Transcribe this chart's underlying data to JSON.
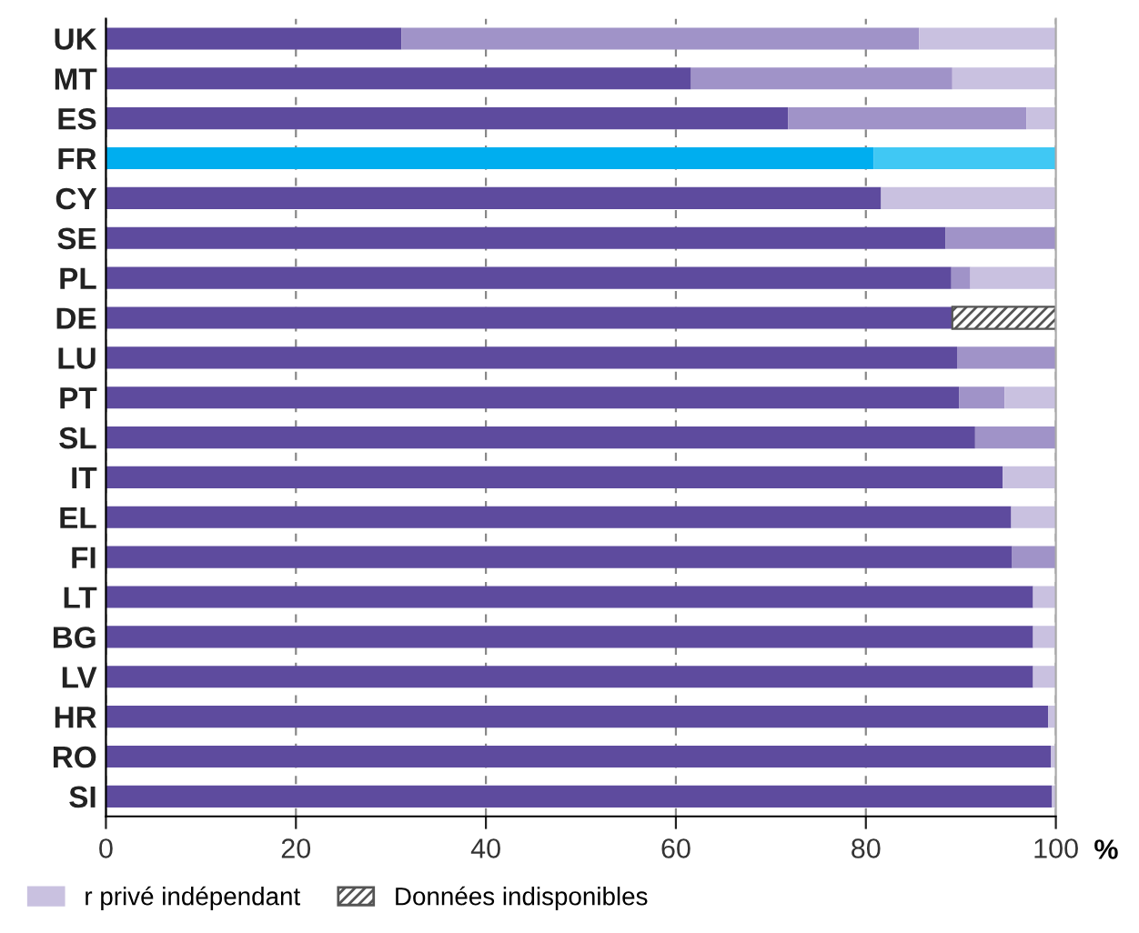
{
  "chart_data": {
    "type": "bar",
    "orientation": "horizontal",
    "stacked": true,
    "categories": [
      "UK",
      "MT",
      "ES",
      "FR",
      "CY",
      "SE",
      "PL",
      "DE",
      "LU",
      "PT",
      "SL",
      "IT",
      "EL",
      "FI",
      "LT",
      "BG",
      "LV",
      "HR",
      "RO",
      "SI"
    ],
    "series": [
      {
        "color": "#5e4b9e",
        "colors": [
          "#5e4b9e",
          "#5e4b9e",
          "#5e4b9e",
          "#00aeef",
          "#5e4b9e",
          "#5e4b9e",
          "#5e4b9e",
          "#5e4b9e",
          "#5e4b9e",
          "#5e4b9e",
          "#5e4b9e",
          "#5e4b9e",
          "#5e4b9e",
          "#5e4b9e",
          "#5e4b9e",
          "#5e4b9e",
          "#5e4b9e",
          "#5e4b9e",
          "#5e4b9e",
          "#5e4b9e"
        ],
        "values": [
          31.1,
          61.6,
          71.8,
          80.8,
          81.6,
          88.4,
          89.0,
          89.1,
          89.6,
          89.8,
          91.5,
          94.4,
          95.3,
          95.4,
          97.6,
          97.6,
          97.6,
          99.2,
          99.5,
          99.6
        ]
      },
      {
        "color": "#a093c8",
        "values": [
          54.5,
          27.5,
          25.1,
          null,
          null,
          11.6,
          2.0,
          null,
          10.4,
          4.8,
          8.5,
          null,
          null,
          4.6,
          null,
          null,
          null,
          null,
          null,
          null
        ]
      },
      {
        "name": "r privé indépendant",
        "color": "#c9c1e0",
        "colors": [
          "#c9c1e0",
          "#c9c1e0",
          "#c9c1e0",
          "#40c8f4",
          "#c9c1e0",
          "#c9c1e0",
          "#c9c1e0",
          "#c9c1e0",
          "#c9c1e0",
          "#c9c1e0",
          "#c9c1e0",
          "#c9c1e0",
          "#c9c1e0",
          "#c9c1e0",
          "#c9c1e0",
          "#c9c1e0",
          "#c9c1e0",
          "#c9c1e0",
          "#c9c1e0",
          "#c9c1e0"
        ],
        "values": [
          14.4,
          10.9,
          3.1,
          19.2,
          18.4,
          null,
          9.0,
          null,
          null,
          5.4,
          null,
          5.6,
          4.7,
          null,
          2.4,
          2.4,
          2.4,
          0.8,
          0.5,
          0.4
        ]
      },
      {
        "name": "Données indisponibles",
        "color": "#555555",
        "values": [
          null,
          null,
          null,
          null,
          null,
          null,
          null,
          10.9,
          null,
          null,
          null,
          null,
          null,
          null,
          null,
          null,
          null,
          null,
          null,
          null
        ]
      }
    ],
    "xlabel": "%",
    "xlim": [
      0,
      100
    ],
    "xticks": [
      0,
      20,
      40,
      60,
      80,
      100
    ],
    "grid": "x",
    "legend": "bottom"
  }
}
